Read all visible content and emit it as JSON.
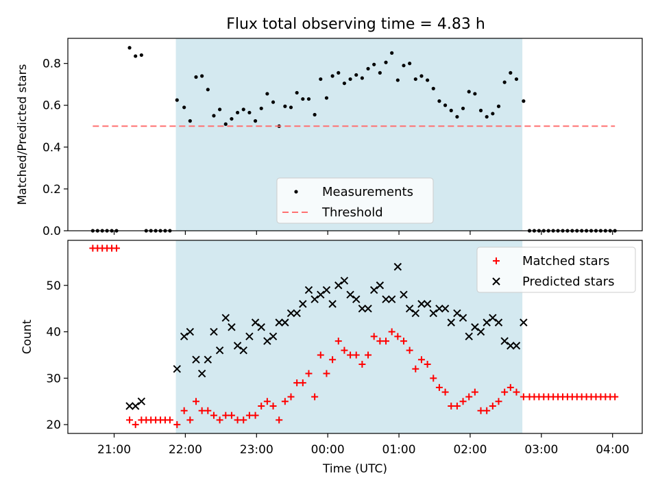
{
  "title": "Flux total observing time = 4.83 h",
  "chart_data": [
    {
      "type": "scatter",
      "ylabel": "Matched/Predicted stars",
      "ylim": [
        0,
        0.92
      ],
      "yticks": [
        "0.0",
        "0.2",
        "0.4",
        "0.6",
        "0.8"
      ],
      "ytick_values": [
        0,
        0.2,
        0.4,
        0.6,
        0.8
      ],
      "shaded_region": {
        "x_start": "21:52",
        "x_end": "02:44",
        "color": "#d4e9f0"
      },
      "legend_position": "lower center",
      "series": [
        {
          "name": "Measurements",
          "marker": "dot",
          "color": "#000000",
          "points": [
            [
              "20:42",
              0
            ],
            [
              "20:46",
              0
            ],
            [
              "20:50",
              0
            ],
            [
              "20:54",
              0
            ],
            [
              "20:58",
              0
            ],
            [
              "21:02",
              0
            ],
            [
              "21:13",
              0.875
            ],
            [
              "21:18",
              0.835
            ],
            [
              "21:23",
              0.84
            ],
            [
              "21:27",
              0
            ],
            [
              "21:31",
              0
            ],
            [
              "21:35",
              0
            ],
            [
              "21:39",
              0
            ],
            [
              "21:43",
              0
            ],
            [
              "21:47",
              0
            ],
            [
              "21:53",
              0.625
            ],
            [
              "21:59",
              0.59
            ],
            [
              "22:04",
              0.525
            ],
            [
              "22:09",
              0.735
            ],
            [
              "22:14",
              0.74
            ],
            [
              "22:19",
              0.675
            ],
            [
              "22:24",
              0.55
            ],
            [
              "22:29",
              0.58
            ],
            [
              "22:34",
              0.51
            ],
            [
              "22:39",
              0.535
            ],
            [
              "22:44",
              0.565
            ],
            [
              "22:49",
              0.58
            ],
            [
              "22:54",
              0.565
            ],
            [
              "22:59",
              0.525
            ],
            [
              "23:04",
              0.585
            ],
            [
              "23:09",
              0.655
            ],
            [
              "23:14",
              0.615
            ],
            [
              "23:19",
              0.5
            ],
            [
              "23:24",
              0.595
            ],
            [
              "23:29",
              0.59
            ],
            [
              "23:34",
              0.66
            ],
            [
              "23:39",
              0.63
            ],
            [
              "23:44",
              0.63
            ],
            [
              "23:49",
              0.555
            ],
            [
              "23:54",
              0.725
            ],
            [
              "23:59",
              0.635
            ],
            [
              "00:04",
              0.74
            ],
            [
              "00:09",
              0.755
            ],
            [
              "00:14",
              0.705
            ],
            [
              "00:19",
              0.725
            ],
            [
              "00:24",
              0.745
            ],
            [
              "00:29",
              0.73
            ],
            [
              "00:34",
              0.775
            ],
            [
              "00:39",
              0.795
            ],
            [
              "00:44",
              0.755
            ],
            [
              "00:49",
              0.805
            ],
            [
              "00:54",
              0.85
            ],
            [
              "00:59",
              0.72
            ],
            [
              "01:04",
              0.79
            ],
            [
              "01:09",
              0.8
            ],
            [
              "01:14",
              0.725
            ],
            [
              "01:19",
              0.74
            ],
            [
              "01:24",
              0.72
            ],
            [
              "01:29",
              0.68
            ],
            [
              "01:34",
              0.62
            ],
            [
              "01:39",
              0.6
            ],
            [
              "01:44",
              0.575
            ],
            [
              "01:49",
              0.545
            ],
            [
              "01:54",
              0.585
            ],
            [
              "01:59",
              0.665
            ],
            [
              "02:04",
              0.655
            ],
            [
              "02:09",
              0.575
            ],
            [
              "02:14",
              0.545
            ],
            [
              "02:19",
              0.56
            ],
            [
              "02:24",
              0.595
            ],
            [
              "02:29",
              0.71
            ],
            [
              "02:34",
              0.755
            ],
            [
              "02:39",
              0.725
            ],
            [
              "02:45",
              0.62
            ],
            [
              "02:50",
              0
            ],
            [
              "02:54",
              0
            ],
            [
              "02:58",
              0
            ],
            [
              "03:02",
              0
            ],
            [
              "03:06",
              0
            ],
            [
              "03:10",
              0
            ],
            [
              "03:14",
              0
            ],
            [
              "03:18",
              0
            ],
            [
              "03:22",
              0
            ],
            [
              "03:26",
              0
            ],
            [
              "03:30",
              0
            ],
            [
              "03:34",
              0
            ],
            [
              "03:38",
              0
            ],
            [
              "03:42",
              0
            ],
            [
              "03:46",
              0
            ],
            [
              "03:50",
              0
            ],
            [
              "03:54",
              0
            ],
            [
              "03:58",
              0
            ],
            [
              "04:02",
              0
            ]
          ]
        },
        {
          "name": "Threshold",
          "marker": "dashed-line",
          "color": "#ff7070",
          "points": [
            [
              "20:42",
              0.5
            ],
            [
              "04:02",
              0.5
            ]
          ]
        }
      ]
    },
    {
      "type": "scatter",
      "xlabel": "Time (UTC)",
      "ylabel": "Count",
      "ylim": [
        18.1,
        59.7
      ],
      "xlim": [
        "20:21",
        "04:25"
      ],
      "xticks": [
        "21:00",
        "22:00",
        "23:00",
        "00:00",
        "01:00",
        "02:00",
        "03:00",
        "04:00"
      ],
      "yticks": [
        "20",
        "30",
        "40",
        "50"
      ],
      "ytick_values": [
        20,
        30,
        40,
        50
      ],
      "shaded_region": {
        "x_start": "21:52",
        "x_end": "02:44",
        "color": "#d4e9f0"
      },
      "legend_position": "upper right",
      "series": [
        {
          "name": "Matched stars",
          "marker": "plus",
          "color": "#ff0000",
          "points": [
            [
              "20:42",
              58
            ],
            [
              "20:46",
              58
            ],
            [
              "20:50",
              58
            ],
            [
              "20:54",
              58
            ],
            [
              "20:58",
              58
            ],
            [
              "21:02",
              58
            ],
            [
              "21:13",
              21
            ],
            [
              "21:18",
              20
            ],
            [
              "21:23",
              21
            ],
            [
              "21:27",
              21
            ],
            [
              "21:31",
              21
            ],
            [
              "21:35",
              21
            ],
            [
              "21:39",
              21
            ],
            [
              "21:43",
              21
            ],
            [
              "21:47",
              21
            ],
            [
              "21:53",
              20
            ],
            [
              "21:59",
              23
            ],
            [
              "22:04",
              21
            ],
            [
              "22:09",
              25
            ],
            [
              "22:14",
              23
            ],
            [
              "22:19",
              23
            ],
            [
              "22:24",
              22
            ],
            [
              "22:29",
              21
            ],
            [
              "22:34",
              22
            ],
            [
              "22:39",
              22
            ],
            [
              "22:44",
              21
            ],
            [
              "22:49",
              21
            ],
            [
              "22:54",
              22
            ],
            [
              "22:59",
              22
            ],
            [
              "23:04",
              24
            ],
            [
              "23:09",
              25
            ],
            [
              "23:14",
              24
            ],
            [
              "23:19",
              21
            ],
            [
              "23:24",
              25
            ],
            [
              "23:29",
              26
            ],
            [
              "23:34",
              29
            ],
            [
              "23:39",
              29
            ],
            [
              "23:44",
              31
            ],
            [
              "23:49",
              26
            ],
            [
              "23:54",
              35
            ],
            [
              "23:59",
              31
            ],
            [
              "00:04",
              34
            ],
            [
              "00:09",
              38
            ],
            [
              "00:14",
              36
            ],
            [
              "00:19",
              35
            ],
            [
              "00:24",
              35
            ],
            [
              "00:29",
              33
            ],
            [
              "00:34",
              35
            ],
            [
              "00:39",
              39
            ],
            [
              "00:44",
              38
            ],
            [
              "00:49",
              38
            ],
            [
              "00:54",
              40
            ],
            [
              "00:59",
              39
            ],
            [
              "01:04",
              38
            ],
            [
              "01:09",
              36
            ],
            [
              "01:14",
              32
            ],
            [
              "01:19",
              34
            ],
            [
              "01:24",
              33
            ],
            [
              "01:29",
              30
            ],
            [
              "01:34",
              28
            ],
            [
              "01:39",
              27
            ],
            [
              "01:44",
              24
            ],
            [
              "01:49",
              24
            ],
            [
              "01:54",
              25
            ],
            [
              "01:59",
              26
            ],
            [
              "02:04",
              27
            ],
            [
              "02:09",
              23
            ],
            [
              "02:14",
              23
            ],
            [
              "02:19",
              24
            ],
            [
              "02:24",
              25
            ],
            [
              "02:29",
              27
            ],
            [
              "02:34",
              28
            ],
            [
              "02:39",
              27
            ],
            [
              "02:45",
              26
            ],
            [
              "02:50",
              26
            ],
            [
              "02:54",
              26
            ],
            [
              "02:58",
              26
            ],
            [
              "03:02",
              26
            ],
            [
              "03:06",
              26
            ],
            [
              "03:10",
              26
            ],
            [
              "03:14",
              26
            ],
            [
              "03:18",
              26
            ],
            [
              "03:22",
              26
            ],
            [
              "03:26",
              26
            ],
            [
              "03:30",
              26
            ],
            [
              "03:34",
              26
            ],
            [
              "03:38",
              26
            ],
            [
              "03:42",
              26
            ],
            [
              "03:46",
              26
            ],
            [
              "03:50",
              26
            ],
            [
              "03:54",
              26
            ],
            [
              "03:58",
              26
            ],
            [
              "04:02",
              26
            ]
          ]
        },
        {
          "name": "Predicted stars",
          "marker": "x",
          "color": "#000000",
          "points": [
            [
              "21:13",
              24
            ],
            [
              "21:18",
              24
            ],
            [
              "21:23",
              25
            ],
            [
              "21:53",
              32
            ],
            [
              "21:59",
              39
            ],
            [
              "22:04",
              40
            ],
            [
              "22:09",
              34
            ],
            [
              "22:14",
              31
            ],
            [
              "22:19",
              34
            ],
            [
              "22:24",
              40
            ],
            [
              "22:29",
              36
            ],
            [
              "22:34",
              43
            ],
            [
              "22:39",
              41
            ],
            [
              "22:44",
              37
            ],
            [
              "22:49",
              36
            ],
            [
              "22:54",
              39
            ],
            [
              "22:59",
              42
            ],
            [
              "23:04",
              41
            ],
            [
              "23:09",
              38
            ],
            [
              "23:14",
              39
            ],
            [
              "23:19",
              42
            ],
            [
              "23:24",
              42
            ],
            [
              "23:29",
              44
            ],
            [
              "23:34",
              44
            ],
            [
              "23:39",
              46
            ],
            [
              "23:44",
              49
            ],
            [
              "23:49",
              47
            ],
            [
              "23:54",
              48
            ],
            [
              "23:59",
              49
            ],
            [
              "00:04",
              46
            ],
            [
              "00:09",
              50
            ],
            [
              "00:14",
              51
            ],
            [
              "00:19",
              48
            ],
            [
              "00:24",
              47
            ],
            [
              "00:29",
              45
            ],
            [
              "00:34",
              45
            ],
            [
              "00:39",
              49
            ],
            [
              "00:44",
              50
            ],
            [
              "00:49",
              47
            ],
            [
              "00:54",
              47
            ],
            [
              "00:59",
              54
            ],
            [
              "01:04",
              48
            ],
            [
              "01:09",
              45
            ],
            [
              "01:14",
              44
            ],
            [
              "01:19",
              46
            ],
            [
              "01:24",
              46
            ],
            [
              "01:29",
              44
            ],
            [
              "01:34",
              45
            ],
            [
              "01:39",
              45
            ],
            [
              "01:44",
              42
            ],
            [
              "01:49",
              44
            ],
            [
              "01:54",
              43
            ],
            [
              "01:59",
              39
            ],
            [
              "02:04",
              41
            ],
            [
              "02:09",
              40
            ],
            [
              "02:14",
              42
            ],
            [
              "02:19",
              43
            ],
            [
              "02:24",
              42
            ],
            [
              "02:29",
              38
            ],
            [
              "02:34",
              37
            ],
            [
              "02:39",
              37
            ],
            [
              "02:45",
              42
            ]
          ]
        }
      ]
    }
  ]
}
